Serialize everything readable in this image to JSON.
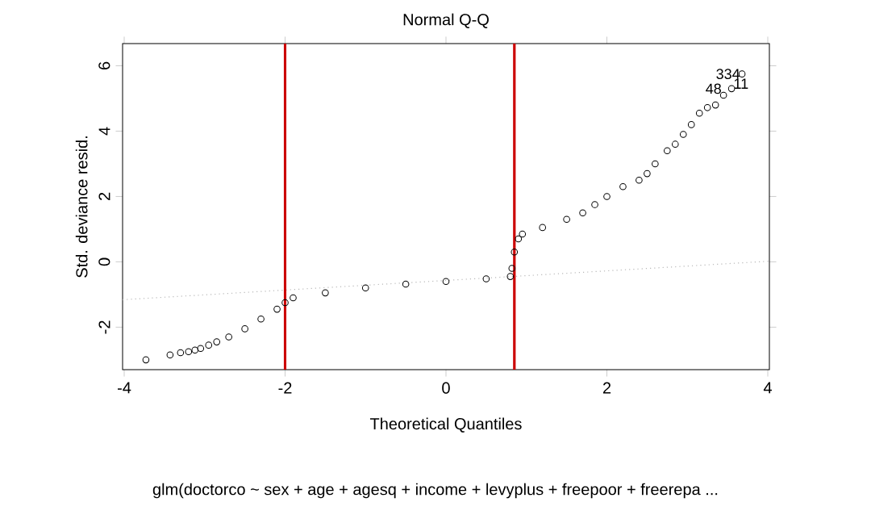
{
  "chart_data": {
    "type": "scatter",
    "title": "Normal Q-Q",
    "xlabel": "Theoretical Quantiles",
    "ylabel": "Std. deviance resid.",
    "xlim": [
      -4.02,
      4.02
    ],
    "ylim": [
      -3.3,
      6.68
    ],
    "xticks": [
      -4,
      -2,
      0,
      2,
      4
    ],
    "yticks": [
      -2,
      0,
      2,
      4,
      6
    ],
    "grid": false,
    "marker": "circle",
    "series": [
      {
        "color": "#000000",
        "x": [
          -3.73,
          -3.43,
          -3.3,
          -3.2,
          -3.12,
          -3.05,
          -2.95,
          -2.85,
          -2.7,
          -2.5,
          -2.3,
          -2.1,
          -2.0,
          -1.9,
          -1.5,
          -1.0,
          -0.5,
          0,
          0.5,
          0.8,
          0.82,
          0.85,
          0.9,
          0.95,
          1.2,
          1.5,
          1.7,
          1.85,
          2.0,
          2.2,
          2.4,
          2.5,
          2.6,
          2.75,
          2.85,
          2.95,
          3.05,
          3.15,
          3.25,
          3.35,
          3.45,
          3.55,
          3.68
        ],
        "values": [
          -3.0,
          -2.85,
          -2.78,
          -2.75,
          -2.7,
          -2.65,
          -2.55,
          -2.45,
          -2.3,
          -2.05,
          -1.75,
          -1.45,
          -1.25,
          -1.1,
          -0.95,
          -0.8,
          -0.68,
          -0.6,
          -0.52,
          -0.45,
          -0.2,
          0.3,
          0.7,
          0.85,
          1.05,
          1.3,
          1.5,
          1.75,
          2.0,
          2.3,
          2.5,
          2.7,
          3.0,
          3.4,
          3.6,
          3.9,
          4.2,
          4.55,
          4.72,
          4.8,
          5.1,
          5.3,
          5.75
        ]
      },
      {
        "type": "line",
        "color": "#b8b8b8",
        "line_style": "dotted",
        "marker": "none",
        "x": [
          -4.02,
          4.02
        ],
        "values": [
          -1.16,
          0.02
        ]
      }
    ],
    "ref_lines": [
      {
        "axis": "x",
        "value": -2,
        "color": "#cc0000"
      },
      {
        "axis": "x",
        "value": 0.85,
        "color": "#cc0000"
      }
    ],
    "annotations": [
      {
        "text": "334",
        "x": 3.68,
        "y": 5.75
      },
      {
        "text": "48",
        "x": 3.45,
        "y": 5.3
      },
      {
        "text": "11",
        "x": 3.55,
        "y": 5.45
      },
      "glm(doctorco ~ sex + age + agesq + income + levyplus + freepoor + freerepa  ..."
    ]
  }
}
